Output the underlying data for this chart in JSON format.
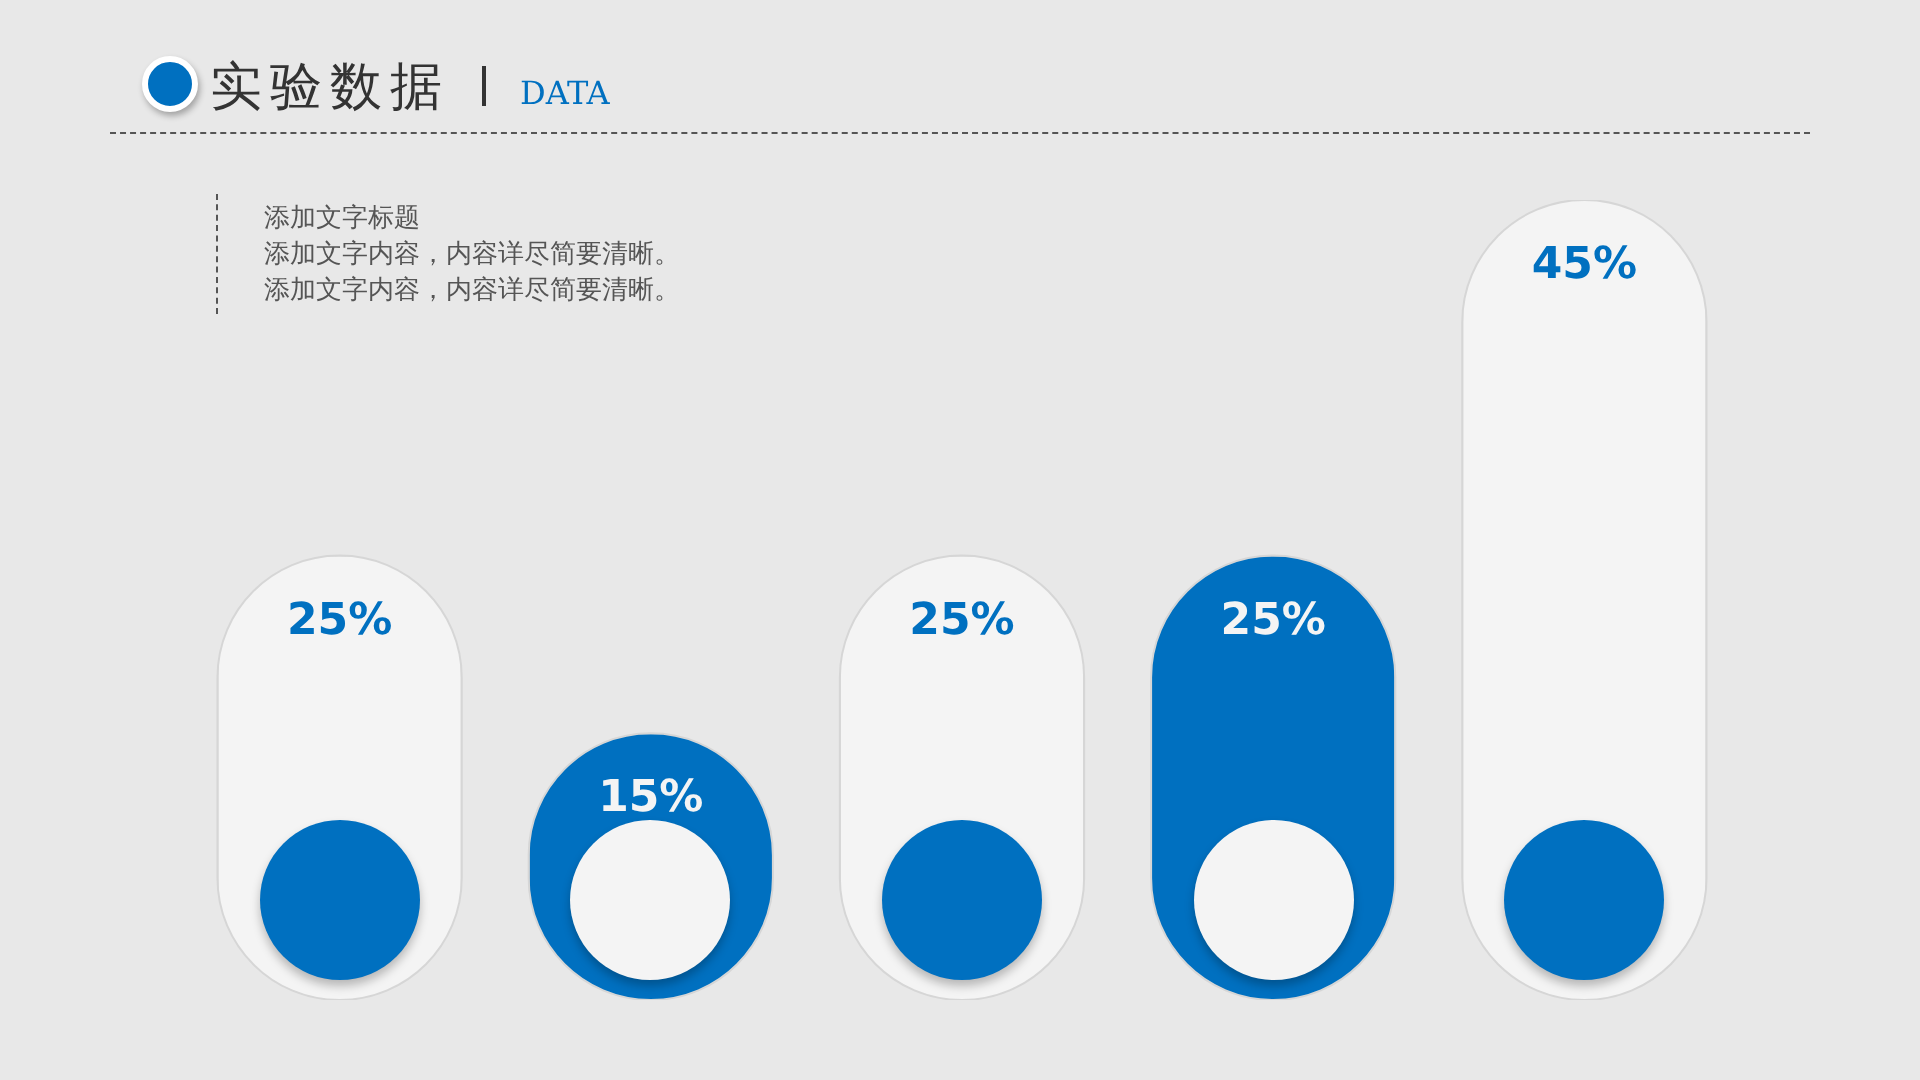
{
  "chart_data": {
    "type": "bar",
    "title": "实验数据",
    "subtitle": "DATA",
    "annotations": [
      "添加文字标题",
      "添加文字内容，内容详尽简要清晰。",
      "添加文字内容，内容详尽简要清晰。"
    ],
    "categories": [
      null,
      null,
      null,
      null,
      null
    ],
    "values": [
      25,
      15,
      25,
      25,
      45
    ],
    "colors": [
      "#f4f4f4",
      "#0070c0",
      "#f4f4f4",
      "#0070c0",
      "#f4f4f4"
    ],
    "value_labels": [
      "25%",
      "15%",
      "25%",
      "25%",
      "45%"
    ]
  }
}
